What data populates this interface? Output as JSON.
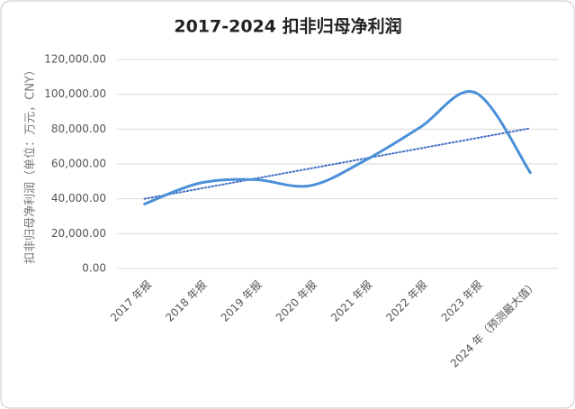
{
  "chart_data": {
    "type": "line",
    "title": "2017-2024 扣非归母净利润",
    "y_label": "扣非归母净利润（单位：万元，CNY）",
    "categories": [
      "2017 年报",
      "2018 年报",
      "2019 年报",
      "2020 年报",
      "2021 年报",
      "2022 年报",
      "2023 年报",
      "2024 年（预测最大值）"
    ],
    "values": [
      37000,
      49000,
      51000,
      47500,
      62000,
      81000,
      101000,
      55000
    ],
    "color": "#4a8fd8",
    "smooth": true,
    "trendline": {
      "start": 40000,
      "end": 80500,
      "color": "#4472c4"
    },
    "ylim": [
      0,
      120000
    ],
    "yticks": [
      {
        "value": 0,
        "label": "0.00"
      },
      {
        "value": 20000,
        "label": "20,000.00"
      },
      {
        "value": 40000,
        "label": "40,000.00"
      },
      {
        "value": 60000,
        "label": "60,000.00"
      },
      {
        "value": 80000,
        "label": "80,000.00"
      },
      {
        "value": 100000,
        "label": "100,000.00"
      },
      {
        "value": 120000,
        "label": "120,000.00"
      }
    ],
    "grid": true
  }
}
